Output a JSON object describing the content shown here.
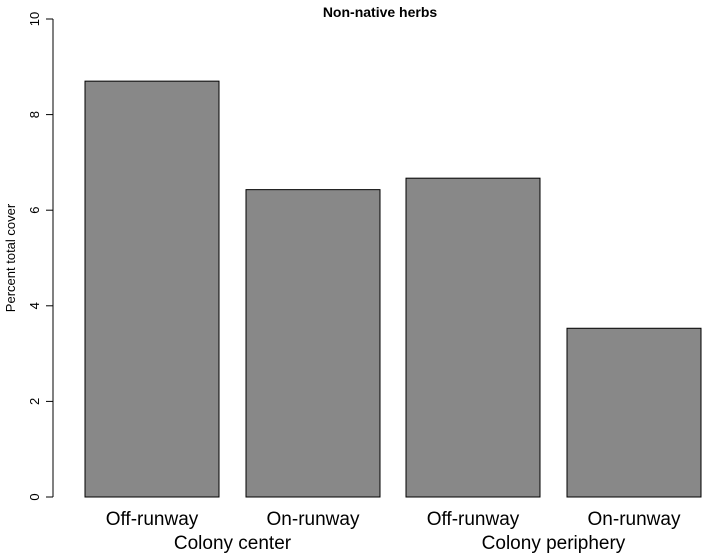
{
  "chart_data": {
    "type": "bar",
    "title": "Non-native herbs",
    "xlabel": "",
    "ylabel": "Percent total cover",
    "ylim": [
      0,
      10
    ],
    "yticks": [
      0,
      2,
      4,
      6,
      8,
      10
    ],
    "categories": [
      "Off-runway",
      "On-runway",
      "Off-runway",
      "On-runway"
    ],
    "groups": [
      {
        "label": "Colony center",
        "categories": [
          0,
          1
        ]
      },
      {
        "label": "Colony periphery",
        "categories": [
          2,
          3
        ]
      }
    ],
    "values": [
      8.7,
      6.43,
      6.67,
      3.53
    ],
    "bar_color": "#888888",
    "grid": false,
    "legend": "none"
  }
}
